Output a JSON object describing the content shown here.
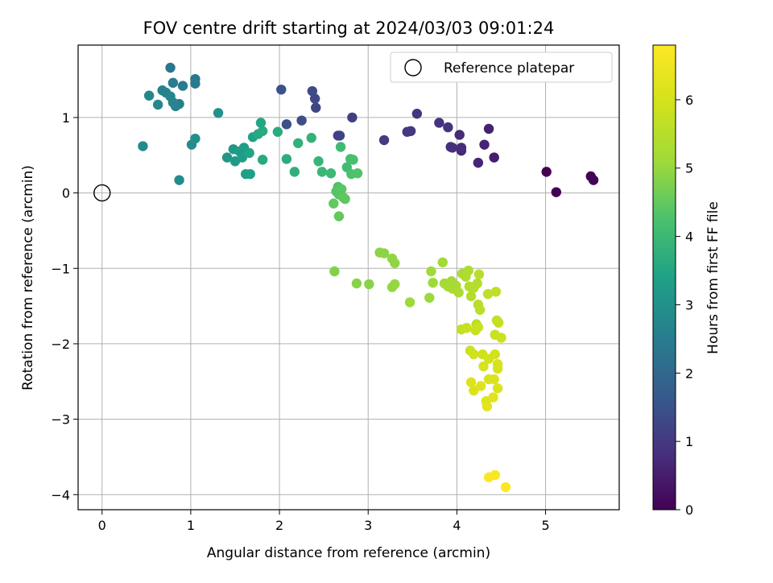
{
  "chart_data": {
    "type": "scatter",
    "title": "FOV centre drift starting at 2024/03/03 09:01:24",
    "xlabel": "Angular distance from reference (arcmin)",
    "ylabel": "Rotation from reference (arcmin)",
    "xlim": [
      -0.27,
      5.83
    ],
    "ylim": [
      -4.2,
      1.96
    ],
    "xticks": [
      0,
      1,
      2,
      3,
      4,
      5
    ],
    "yticks": [
      1,
      0,
      -1,
      -2,
      -3,
      -4
    ],
    "grid": true,
    "legend": {
      "placement": "top-right",
      "entries": [
        "Reference platepar"
      ]
    },
    "reference_point": {
      "x": 0,
      "y": 0
    },
    "colorbar": {
      "label": "Hours from first FF file",
      "colormap": "viridis",
      "range": [
        0,
        6.8
      ],
      "ticks": [
        0,
        1,
        2,
        3,
        4,
        5,
        6
      ]
    },
    "points": [
      [
        5.01,
        0.28,
        0.0
      ],
      [
        5.12,
        0.01,
        0.0
      ],
      [
        5.51,
        0.22,
        0.05
      ],
      [
        5.54,
        0.17,
        0.05
      ],
      [
        4.42,
        0.47,
        0.5
      ],
      [
        4.36,
        0.85,
        0.55
      ],
      [
        4.31,
        0.64,
        0.6
      ],
      [
        4.24,
        0.4,
        0.65
      ],
      [
        4.05,
        0.56,
        0.7
      ],
      [
        4.03,
        0.77,
        0.75
      ],
      [
        4.05,
        0.6,
        0.75
      ],
      [
        3.93,
        0.61,
        0.8
      ],
      [
        3.95,
        0.6,
        0.8
      ],
      [
        3.9,
        0.87,
        0.85
      ],
      [
        3.8,
        0.93,
        0.85
      ],
      [
        3.55,
        1.05,
        0.9
      ],
      [
        3.48,
        0.82,
        0.95
      ],
      [
        3.44,
        0.81,
        1.0
      ],
      [
        3.18,
        0.7,
        1.05
      ],
      [
        2.82,
        1.0,
        1.1
      ],
      [
        2.66,
        0.76,
        1.15
      ],
      [
        2.68,
        0.76,
        1.2
      ],
      [
        2.41,
        1.13,
        1.25
      ],
      [
        2.4,
        1.25,
        1.3
      ],
      [
        2.37,
        1.35,
        1.35
      ],
      [
        2.25,
        0.96,
        1.4
      ],
      [
        2.08,
        0.91,
        1.45
      ],
      [
        2.02,
        1.37,
        1.5
      ],
      [
        0.77,
        1.66,
        2.3
      ],
      [
        1.05,
        1.51,
        2.35
      ],
      [
        1.05,
        1.45,
        2.4
      ],
      [
        0.91,
        1.42,
        2.45
      ],
      [
        0.8,
        1.46,
        2.5
      ],
      [
        0.87,
        1.18,
        2.55
      ],
      [
        0.83,
        1.15,
        2.6
      ],
      [
        0.68,
        1.36,
        2.6
      ],
      [
        0.72,
        1.33,
        2.65
      ],
      [
        0.77,
        1.28,
        2.7
      ],
      [
        0.8,
        1.2,
        2.7
      ],
      [
        0.53,
        1.29,
        2.75
      ],
      [
        0.63,
        1.17,
        2.8
      ],
      [
        0.46,
        0.62,
        2.85
      ],
      [
        0.87,
        0.17,
        2.85
      ],
      [
        1.01,
        0.64,
        2.9
      ],
      [
        1.05,
        0.72,
        2.95
      ],
      [
        1.31,
        1.06,
        3.0
      ],
      [
        1.41,
        0.47,
        3.1
      ],
      [
        1.48,
        0.58,
        3.15
      ],
      [
        1.5,
        0.42,
        3.2
      ],
      [
        1.55,
        0.55,
        3.25
      ],
      [
        1.6,
        0.6,
        3.3
      ],
      [
        1.58,
        0.47,
        3.3
      ],
      [
        1.62,
        0.25,
        3.35
      ],
      [
        1.67,
        0.25,
        3.4
      ],
      [
        1.66,
        0.53,
        3.45
      ],
      [
        1.7,
        0.74,
        3.45
      ],
      [
        1.79,
        0.93,
        3.5
      ],
      [
        1.76,
        0.78,
        3.55
      ],
      [
        1.81,
        0.82,
        3.6
      ],
      [
        1.81,
        0.44,
        3.6
      ],
      [
        1.98,
        0.81,
        3.65
      ],
      [
        2.08,
        0.45,
        3.7
      ],
      [
        2.17,
        0.28,
        3.75
      ],
      [
        2.21,
        0.66,
        3.8
      ],
      [
        2.36,
        0.73,
        3.85
      ],
      [
        2.44,
        0.42,
        3.9
      ],
      [
        2.48,
        0.28,
        3.95
      ],
      [
        2.58,
        0.26,
        4.0
      ],
      [
        2.69,
        0.61,
        4.05
      ],
      [
        2.76,
        0.34,
        4.1
      ],
      [
        2.8,
        0.45,
        4.15
      ],
      [
        2.83,
        0.44,
        4.2
      ],
      [
        2.81,
        0.25,
        4.25
      ],
      [
        2.88,
        0.26,
        4.3
      ],
      [
        2.66,
        0.08,
        4.3
      ],
      [
        2.64,
        0.02,
        4.35
      ],
      [
        2.67,
        -0.02,
        4.35
      ],
      [
        2.7,
        0.05,
        4.4
      ],
      [
        2.72,
        -0.06,
        4.45
      ],
      [
        2.74,
        -0.08,
        4.45
      ],
      [
        2.61,
        -0.14,
        4.5
      ],
      [
        2.67,
        -0.31,
        4.5
      ],
      [
        2.62,
        -1.04,
        4.8
      ],
      [
        2.87,
        -1.2,
        4.85
      ],
      [
        3.01,
        -1.21,
        4.85
      ],
      [
        3.13,
        -0.79,
        4.9
      ],
      [
        3.18,
        -0.8,
        4.9
      ],
      [
        3.27,
        -0.87,
        4.95
      ],
      [
        3.3,
        -0.93,
        4.95
      ],
      [
        3.27,
        -1.25,
        5.0
      ],
      [
        3.3,
        -1.21,
        5.0
      ],
      [
        3.47,
        -1.45,
        5.05
      ],
      [
        3.69,
        -1.39,
        5.05
      ],
      [
        3.71,
        -1.04,
        5.1
      ],
      [
        3.73,
        -1.19,
        5.1
      ],
      [
        3.84,
        -0.92,
        5.15
      ],
      [
        3.86,
        -1.2,
        5.15
      ],
      [
        3.9,
        -1.24,
        5.2
      ],
      [
        3.94,
        -1.17,
        5.2
      ],
      [
        3.95,
        -1.27,
        5.25
      ],
      [
        3.99,
        -1.23,
        5.25
      ],
      [
        4.02,
        -1.32,
        5.3
      ],
      [
        4.06,
        -1.07,
        5.3
      ],
      [
        4.13,
        -1.03,
        5.35
      ],
      [
        4.1,
        -1.11,
        5.35
      ],
      [
        4.14,
        -1.24,
        5.4
      ],
      [
        4.16,
        -1.37,
        5.4
      ],
      [
        4.19,
        -1.26,
        5.45
      ],
      [
        4.23,
        -1.2,
        5.45
      ],
      [
        4.25,
        -1.08,
        5.5
      ],
      [
        4.24,
        -1.48,
        5.5
      ],
      [
        4.22,
        -1.74,
        5.55
      ],
      [
        4.26,
        -1.55,
        5.55
      ],
      [
        4.35,
        -1.34,
        5.6
      ],
      [
        4.44,
        -1.31,
        5.6
      ],
      [
        4.45,
        -1.69,
        5.65
      ],
      [
        4.47,
        -1.72,
        5.7
      ],
      [
        4.05,
        -1.81,
        5.7
      ],
      [
        4.11,
        -1.79,
        5.75
      ],
      [
        4.21,
        -1.82,
        5.75
      ],
      [
        4.24,
        -1.78,
        5.8
      ],
      [
        4.43,
        -1.88,
        5.8
      ],
      [
        4.5,
        -1.92,
        5.85
      ],
      [
        4.15,
        -2.09,
        5.85
      ],
      [
        4.19,
        -2.14,
        5.9
      ],
      [
        4.29,
        -2.14,
        5.9
      ],
      [
        4.36,
        -2.2,
        5.95
      ],
      [
        4.43,
        -2.14,
        5.95
      ],
      [
        4.46,
        -2.27,
        6.0
      ],
      [
        4.46,
        -2.33,
        6.0
      ],
      [
        4.3,
        -2.3,
        6.05
      ],
      [
        4.36,
        -2.47,
        6.05
      ],
      [
        4.42,
        -2.47,
        6.1
      ],
      [
        4.46,
        -2.59,
        6.1
      ],
      [
        4.16,
        -2.51,
        6.15
      ],
      [
        4.19,
        -2.62,
        6.15
      ],
      [
        4.27,
        -2.56,
        6.2
      ],
      [
        4.33,
        -2.76,
        6.2
      ],
      [
        4.34,
        -2.83,
        6.25
      ],
      [
        4.41,
        -2.71,
        6.25
      ],
      [
        4.36,
        -3.77,
        6.75
      ],
      [
        4.43,
        -3.74,
        6.75
      ],
      [
        4.55,
        -3.9,
        6.8
      ]
    ]
  }
}
